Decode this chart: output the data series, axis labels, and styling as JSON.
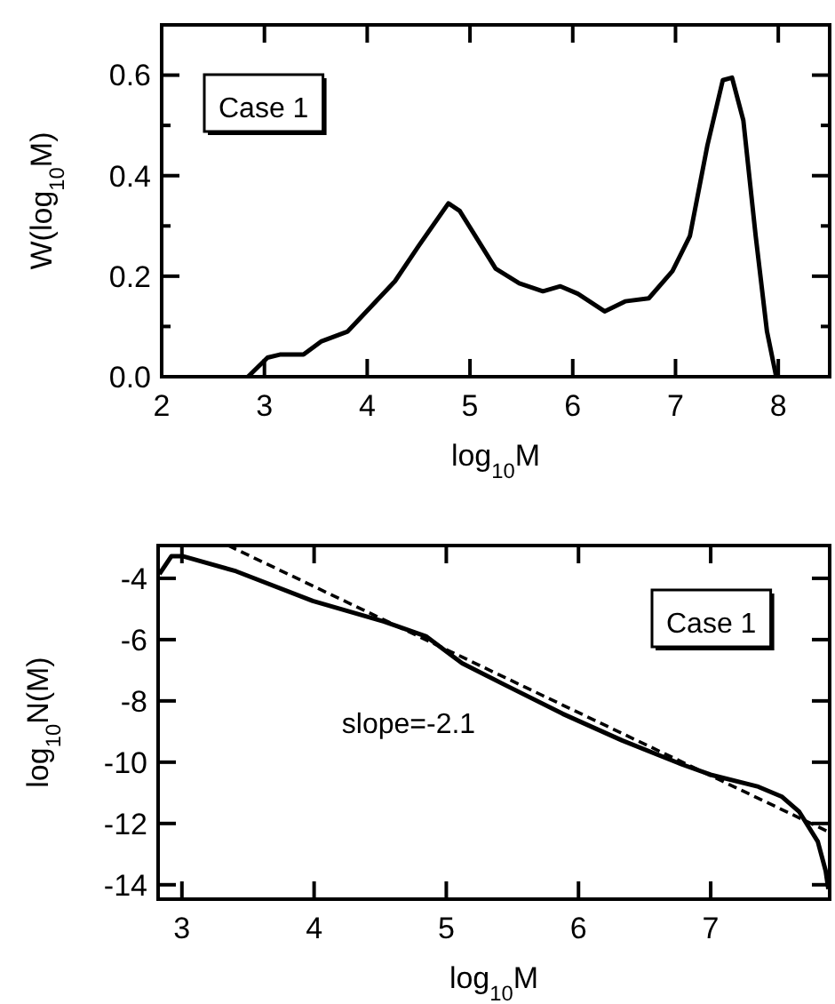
{
  "chart_data": [
    {
      "type": "line",
      "xlabel": "log$_{10}$M",
      "ylabel": "W(log$_{10}$M)",
      "xlim": [
        2,
        8.5
      ],
      "ylim": [
        0,
        0.7
      ],
      "xticks": [
        2,
        3,
        4,
        5,
        6,
        7,
        8
      ],
      "yticks": [
        "0.0",
        {
          "value": 0.1,
          "label": null
        },
        0.2,
        {
          "value": 0.3,
          "label": null
        },
        0.4,
        {
          "value": 0.5,
          "label": null
        },
        0.6
      ],
      "annotations": [
        "Case 1"
      ],
      "line_style": "solid",
      "marker": "none",
      "series": [
        {
          "color": "#000000",
          "x": [
            2.84,
            3.03,
            3.15,
            3.38,
            3.55,
            3.81,
            4.04,
            4.27,
            4.5,
            4.79,
            4.9,
            5.25,
            5.48,
            5.71,
            5.88,
            6.05,
            6.31,
            6.51,
            6.74,
            6.97,
            7.14,
            7.31,
            7.46,
            7.55,
            7.66,
            7.78,
            7.89,
            7.98
          ],
          "values": [
            0,
            0.038,
            0.044,
            0.044,
            0.07,
            0.09,
            0.14,
            0.19,
            0.26,
            0.345,
            0.33,
            0.215,
            0.186,
            0.17,
            0.18,
            0.165,
            0.13,
            0.15,
            0.156,
            0.21,
            0.28,
            0.46,
            0.59,
            0.595,
            0.51,
            0.28,
            0.09,
            0
          ]
        }
      ]
    },
    {
      "type": "line",
      "xlabel": "log$_{10}$M",
      "ylabel": "log$_{10}$N(M)",
      "xlim": [
        2.82,
        7.9
      ],
      "ylim": [
        -14.47,
        -2.93
      ],
      "xticks": [
        3,
        4,
        5,
        6,
        7
      ],
      "yticks": [
        -14,
        -12,
        -10,
        -8,
        -6,
        -4
      ],
      "annotations": [
        "Case 1",
        "slope=-2.1"
      ],
      "marker": "none",
      "series": [
        {
          "color": "#000000",
          "line_style": "solid",
          "x": [
            2.83,
            2.92,
            3.01,
            3.41,
            3.99,
            4.53,
            4.85,
            5.12,
            5.43,
            5.88,
            6.33,
            6.78,
            7,
            7.36,
            7.54,
            7.67,
            7.81,
            7.87,
            7.89
          ],
          "values": [
            -3.86,
            -3.28,
            -3.28,
            -3.77,
            -4.74,
            -5.41,
            -5.9,
            -6.77,
            -7.45,
            -8.42,
            -9.29,
            -10.07,
            -10.41,
            -10.8,
            -11.13,
            -11.62,
            -12.59,
            -13.55,
            -14.14
          ]
        },
        {
          "type": "line",
          "color": "#000000",
          "line_style": "dashed",
          "x": [
            3.35,
            7.9
          ],
          "values": [
            -2.93,
            -12.29
          ]
        }
      ]
    }
  ]
}
